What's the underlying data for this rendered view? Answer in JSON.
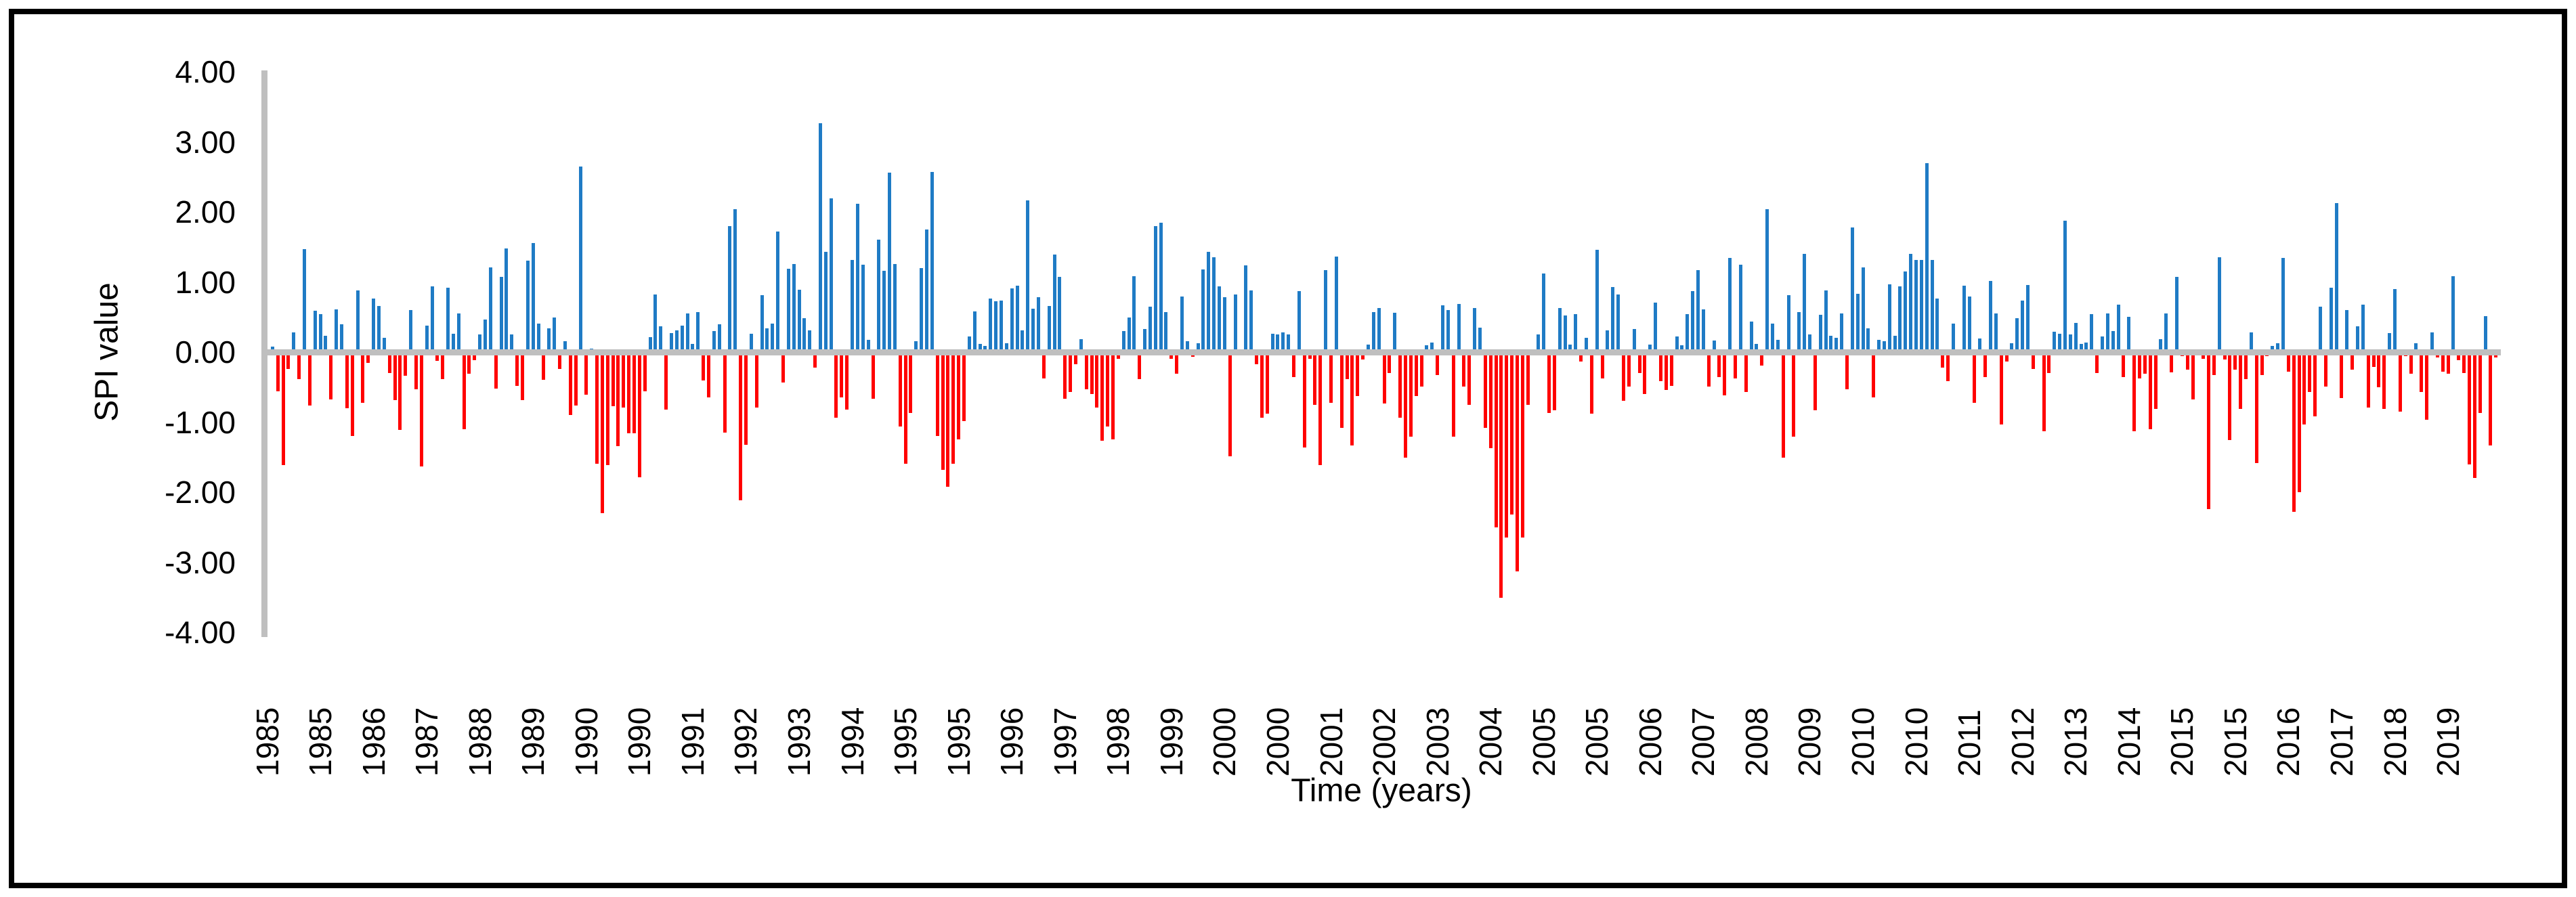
{
  "chart_data": {
    "type": "bar",
    "title": "",
    "xlabel": "Time (years)",
    "ylabel": "SPI value",
    "ylim": [
      -4,
      4
    ],
    "grid": false,
    "legend": "none",
    "y_ticks": [
      "4.00",
      "3.00",
      "2.00",
      "1.00",
      "0.00",
      "-1.00",
      "-2.00",
      "-3.00",
      "-4.00"
    ],
    "y_tick_values": [
      4,
      3,
      2,
      1,
      0,
      -1,
      -2,
      -3,
      -4
    ],
    "x_tick_every": 10,
    "x_tick_labels": [
      "1985",
      "1985",
      "1986",
      "1987",
      "1988",
      "1989",
      "1990",
      "1990",
      "1991",
      "1992",
      "1993",
      "1994",
      "1995",
      "1995",
      "1996",
      "1997",
      "1998",
      "1999",
      "2000",
      "2000",
      "2001",
      "2002",
      "2003",
      "2004",
      "2005",
      "2005",
      "2006",
      "2007",
      "2008",
      "2009",
      "2010",
      "2010",
      "2011",
      "2012",
      "2013",
      "2014",
      "2015",
      "2015",
      "2016",
      "2017",
      "2018",
      "2019"
    ],
    "positive_color": "#1F7BC5",
    "negative_color": "#FF0000",
    "axis_color": "#BFBFBF",
    "values": [
      0.04,
      0.08,
      -0.56,
      -1.61,
      -0.24,
      0.28,
      -0.39,
      1.47,
      -0.76,
      0.59,
      0.54,
      0.23,
      -0.68,
      0.61,
      0.4,
      -0.8,
      -1.2,
      0.88,
      -0.72,
      -0.15,
      0.76,
      0.66,
      0.2,
      -0.3,
      -0.69,
      -1.11,
      -0.34,
      0.6,
      -0.53,
      -1.63,
      0.38,
      0.94,
      -0.13,
      -0.39,
      0.92,
      0.26,
      0.55,
      -1.1,
      -0.31,
      -0.12,
      0.25,
      0.46,
      1.21,
      -0.52,
      1.07,
      1.48,
      0.25,
      -0.48,
      -0.69,
      1.3,
      1.56,
      0.41,
      -0.4,
      0.34,
      0.49,
      -0.24,
      0.15,
      -0.9,
      -0.76,
      2.65,
      -0.61,
      0.05,
      -1.59,
      -2.3,
      -1.61,
      -0.77,
      -1.34,
      -0.79,
      -1.16,
      -1.16,
      -1.79,
      -0.56,
      0.21,
      0.82,
      0.37,
      -0.82,
      0.27,
      0.31,
      0.38,
      0.55,
      0.12,
      0.57,
      -0.41,
      -0.65,
      0.3,
      0.4,
      -1.15,
      1.8,
      2.04,
      -2.12,
      -1.32,
      0.26,
      -0.79,
      0.81,
      0.34,
      0.41,
      1.72,
      -0.43,
      1.19,
      1.26,
      0.89,
      0.48,
      0.31,
      -0.22,
      3.27,
      1.43,
      2.19,
      -0.94,
      -0.65,
      -0.82,
      1.31,
      2.12,
      1.25,
      0.17,
      -0.67,
      1.6,
      1.16,
      2.56,
      1.26,
      -1.06,
      -1.59,
      -0.87,
      0.15,
      1.2,
      1.75,
      2.57,
      -1.2,
      -1.68,
      -1.92,
      -1.59,
      -1.25,
      -0.99,
      0.22,
      0.58,
      0.12,
      0.09,
      0.76,
      0.72,
      0.73,
      0.13,
      0.91,
      0.95,
      0.31,
      2.16,
      0.62,
      0.78,
      -0.38,
      0.66,
      1.39,
      1.07,
      -0.67,
      -0.57,
      -0.17,
      0.18,
      -0.53,
      -0.6,
      -0.79,
      -1.27,
      -1.06,
      -1.25,
      -0.1,
      0.3,
      0.49,
      1.08,
      -0.39,
      0.33,
      0.65,
      1.8,
      1.85,
      0.57,
      -0.1,
      -0.31,
      0.79,
      0.15,
      -0.07,
      0.13,
      1.18,
      1.43,
      1.35,
      0.94,
      0.78,
      -1.49,
      0.82,
      0.04,
      1.24,
      0.88,
      -0.17,
      -0.94,
      -0.88,
      0.26,
      0.25,
      0.28,
      0.25,
      -0.36,
      0.87,
      -1.36,
      -0.1,
      -0.75,
      -1.61,
      1.17,
      -0.72,
      1.36,
      -1.08,
      -0.39,
      -1.33,
      -0.63,
      -0.11,
      0.11,
      0.57,
      0.63,
      -0.73,
      -0.3,
      0.56,
      -0.94,
      -1.51,
      -1.21,
      -0.63,
      -0.49,
      0.1,
      0.14,
      -0.33,
      0.67,
      0.6,
      -1.21,
      0.69,
      -0.49,
      -0.75,
      0.63,
      0.35,
      -1.08,
      -1.37,
      -2.5,
      -3.51,
      -2.65,
      -2.32,
      -3.13,
      -2.65,
      -0.75,
      0.02,
      0.25,
      1.12,
      -0.87,
      -0.83,
      0.63,
      0.52,
      0.11,
      0.54,
      -0.14,
      0.2,
      -0.88,
      1.46,
      -0.38,
      0.31,
      0.93,
      0.82,
      -0.7,
      -0.49,
      0.33,
      -0.3,
      -0.6,
      0.11,
      0.71,
      -0.42,
      -0.54,
      -0.48,
      0.22,
      0.1,
      0.54,
      0.87,
      1.17,
      0.61,
      -0.49,
      0.16,
      -0.36,
      -0.62,
      1.34,
      -0.38,
      1.25,
      -0.57,
      0.43,
      0.12,
      -0.19,
      2.04,
      0.41,
      0.17,
      -1.51,
      0.81,
      -1.21,
      0.57,
      1.4,
      0.25,
      -0.83,
      0.53,
      0.88,
      0.23,
      0.2,
      0.55,
      -0.53,
      1.78,
      0.83,
      1.21,
      0.34,
      -0.65,
      0.17,
      0.15,
      0.97,
      0.23,
      0.94,
      1.15,
      1.4,
      1.31,
      1.31,
      2.7,
      1.31,
      0.76,
      -0.22,
      -0.42,
      0.41,
      0.04,
      0.95,
      0.79,
      -0.72,
      0.19,
      -0.36,
      1.01,
      0.55,
      -1.03,
      -0.14,
      0.13,
      0.48,
      0.73,
      0.96,
      -0.24,
      -0.02,
      -1.13,
      -0.3,
      0.29,
      0.26,
      1.87,
      0.25,
      0.42,
      0.12,
      0.14,
      0.54,
      -0.3,
      0.22,
      0.55,
      0.3,
      0.68,
      -0.36,
      0.5,
      -1.13,
      -0.38,
      -0.31,
      -1.1,
      -0.81,
      0.18,
      0.55,
      -0.29,
      1.07,
      -0.06,
      -0.25,
      -0.68,
      -0.02,
      -0.1,
      -2.24,
      -0.33,
      1.35,
      -0.11,
      -1.26,
      -0.25,
      -0.81,
      -0.39,
      0.28,
      -1.58,
      -0.33,
      -0.06,
      0.09,
      0.13,
      1.34,
      -0.28,
      -2.28,
      -2.0,
      -1.03,
      -0.57,
      -0.92,
      0.65,
      -0.49,
      0.92,
      2.13,
      -0.66,
      0.6,
      -0.25,
      0.37,
      0.68,
      -0.79,
      -0.21,
      -0.5,
      -0.81,
      0.27,
      0.9,
      -0.85,
      -0.06,
      -0.31,
      0.13,
      -0.57,
      -0.97,
      0.28,
      -0.08,
      -0.28,
      -0.31,
      1.08,
      -0.12,
      -0.3,
      -1.6,
      -1.8,
      -0.87,
      0.51,
      -1.33,
      -0.08
    ]
  }
}
